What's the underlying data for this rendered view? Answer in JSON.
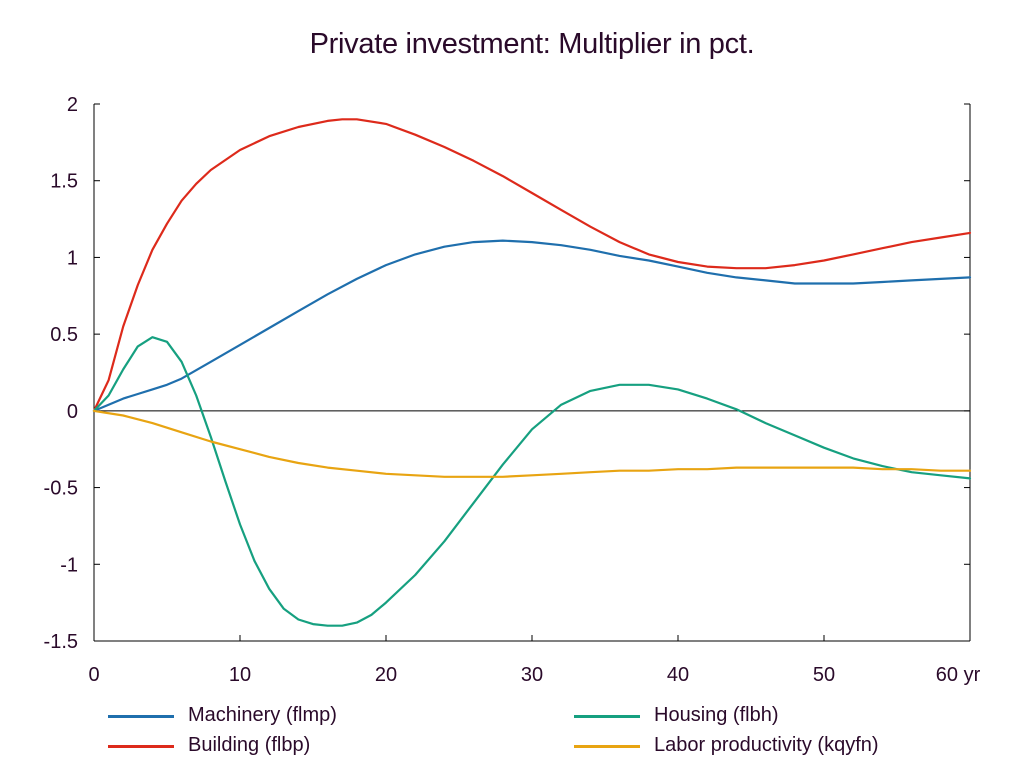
{
  "chart_data": {
    "type": "line",
    "title": "Private investment: Multiplier in pct.",
    "xlabel": "",
    "ylabel": "",
    "xlim": [
      0,
      60
    ],
    "ylim": [
      -1.5,
      2
    ],
    "xticks": [
      0,
      10,
      20,
      30,
      40,
      50,
      60
    ],
    "xtick_labels": [
      "0",
      "10",
      "20",
      "30",
      "40",
      "50",
      "60 yr"
    ],
    "yticks": [
      2,
      1.5,
      1,
      0.5,
      0,
      -0.5,
      -1,
      -1.5
    ],
    "ytick_labels": [
      "2",
      "1.5",
      "1",
      "0.5",
      "0",
      "-0.5",
      "-1",
      "-1.5"
    ],
    "zero_line": true,
    "grid": false,
    "legend_position": "bottom",
    "series": [
      {
        "name": "Machinery (flmp)",
        "color": "#1f6fad",
        "x": [
          0,
          1,
          2,
          3,
          4,
          5,
          6,
          8,
          10,
          12,
          14,
          16,
          18,
          20,
          22,
          24,
          26,
          28,
          30,
          32,
          34,
          36,
          38,
          40,
          42,
          44,
          46,
          48,
          50,
          52,
          54,
          56,
          58,
          60
        ],
        "values": [
          0,
          0.04,
          0.08,
          0.11,
          0.14,
          0.17,
          0.21,
          0.32,
          0.43,
          0.54,
          0.65,
          0.76,
          0.86,
          0.95,
          1.02,
          1.07,
          1.1,
          1.11,
          1.1,
          1.08,
          1.05,
          1.01,
          0.98,
          0.94,
          0.9,
          0.87,
          0.85,
          0.83,
          0.83,
          0.83,
          0.84,
          0.85,
          0.86,
          0.87
        ]
      },
      {
        "name": "Building (flbp)",
        "color": "#dd2a1b",
        "x": [
          0,
          1,
          2,
          3,
          4,
          5,
          6,
          7,
          8,
          10,
          12,
          14,
          16,
          17,
          18,
          20,
          22,
          24,
          26,
          28,
          30,
          32,
          34,
          36,
          38,
          40,
          42,
          44,
          46,
          48,
          50,
          52,
          54,
          56,
          58,
          60
        ],
        "values": [
          0,
          0.2,
          0.55,
          0.82,
          1.05,
          1.22,
          1.37,
          1.48,
          1.57,
          1.7,
          1.79,
          1.85,
          1.89,
          1.9,
          1.9,
          1.87,
          1.8,
          1.72,
          1.63,
          1.53,
          1.42,
          1.31,
          1.2,
          1.1,
          1.02,
          0.97,
          0.94,
          0.93,
          0.93,
          0.95,
          0.98,
          1.02,
          1.06,
          1.1,
          1.13,
          1.16
        ]
      },
      {
        "name": "Housing (flbh)",
        "color": "#16a080",
        "x": [
          0,
          1,
          2,
          3,
          4,
          5,
          6,
          7,
          8,
          9,
          10,
          11,
          12,
          13,
          14,
          15,
          16,
          17,
          18,
          19,
          20,
          22,
          24,
          26,
          28,
          30,
          32,
          34,
          36,
          38,
          40,
          42,
          44,
          46,
          48,
          50,
          52,
          54,
          56,
          58,
          60
        ],
        "values": [
          0,
          0.1,
          0.27,
          0.42,
          0.48,
          0.45,
          0.32,
          0.1,
          -0.17,
          -0.46,
          -0.74,
          -0.98,
          -1.16,
          -1.29,
          -1.36,
          -1.39,
          -1.4,
          -1.4,
          -1.38,
          -1.33,
          -1.25,
          -1.07,
          -0.85,
          -0.6,
          -0.35,
          -0.12,
          0.04,
          0.13,
          0.17,
          0.17,
          0.14,
          0.08,
          0.01,
          -0.08,
          -0.16,
          -0.24,
          -0.31,
          -0.36,
          -0.4,
          -0.42,
          -0.44
        ]
      },
      {
        "name": "Labor productivity (kqyfn)",
        "color": "#e8a412",
        "x": [
          0,
          2,
          4,
          6,
          8,
          10,
          12,
          14,
          16,
          18,
          20,
          22,
          24,
          26,
          28,
          30,
          32,
          34,
          36,
          38,
          40,
          42,
          44,
          46,
          48,
          50,
          52,
          54,
          56,
          58,
          60
        ],
        "values": [
          0,
          -0.03,
          -0.08,
          -0.14,
          -0.2,
          -0.25,
          -0.3,
          -0.34,
          -0.37,
          -0.39,
          -0.41,
          -0.42,
          -0.43,
          -0.43,
          -0.43,
          -0.42,
          -0.41,
          -0.4,
          -0.39,
          -0.39,
          -0.38,
          -0.38,
          -0.37,
          -0.37,
          -0.37,
          -0.37,
          -0.37,
          -0.38,
          -0.38,
          -0.39,
          -0.39
        ]
      }
    ]
  }
}
